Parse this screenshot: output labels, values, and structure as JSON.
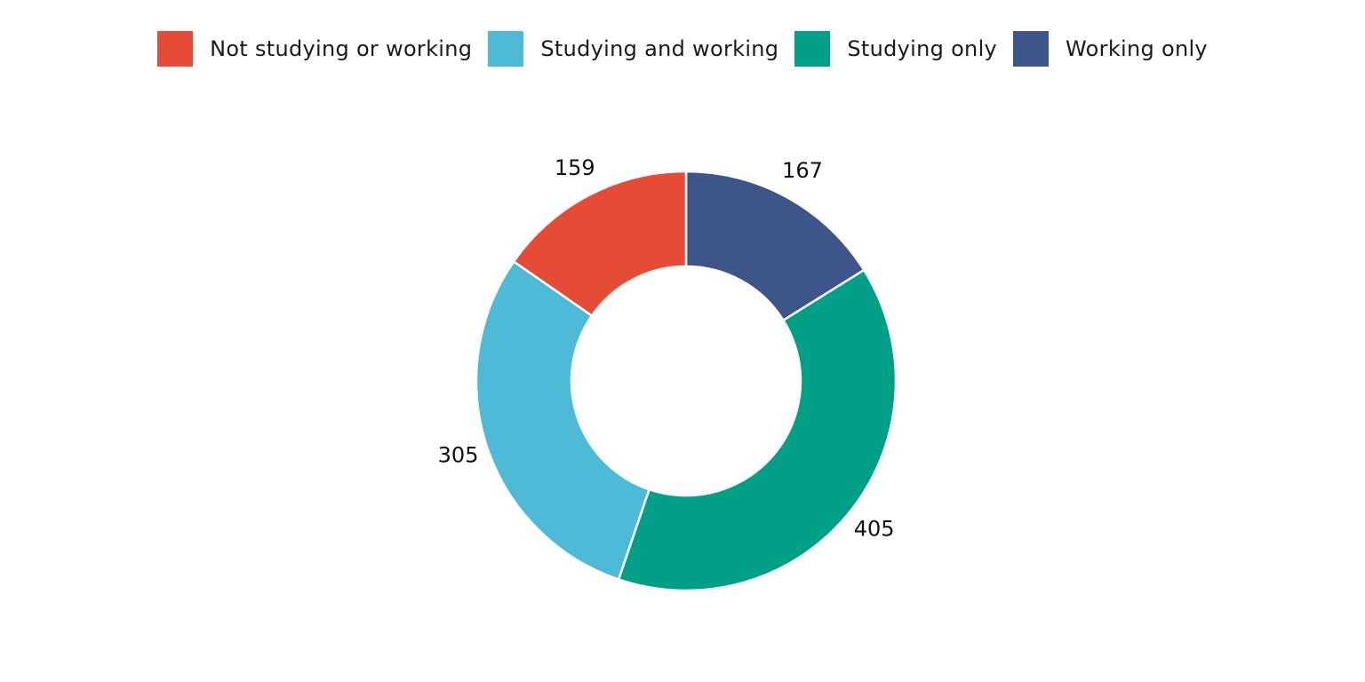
{
  "chart_data": {
    "type": "pie",
    "variant": "donut",
    "title": "",
    "legend_position": "top",
    "slices": [
      {
        "label": "Working only",
        "value": 167,
        "color": "#3d5588"
      },
      {
        "label": "Studying only",
        "value": 405,
        "color": "#00a087"
      },
      {
        "label": "Studying and working",
        "value": 305,
        "color": "#4ebbd6"
      },
      {
        "label": "Not studying or working",
        "value": 159,
        "color": "#e64b35"
      }
    ],
    "legend": [
      {
        "label": "Not studying or working",
        "color": "#e64b35"
      },
      {
        "label": "Studying and working",
        "color": "#4ebbd6"
      },
      {
        "label": "Studying only",
        "color": "#00a087"
      },
      {
        "label": "Working only",
        "color": "#3d5588"
      }
    ]
  }
}
